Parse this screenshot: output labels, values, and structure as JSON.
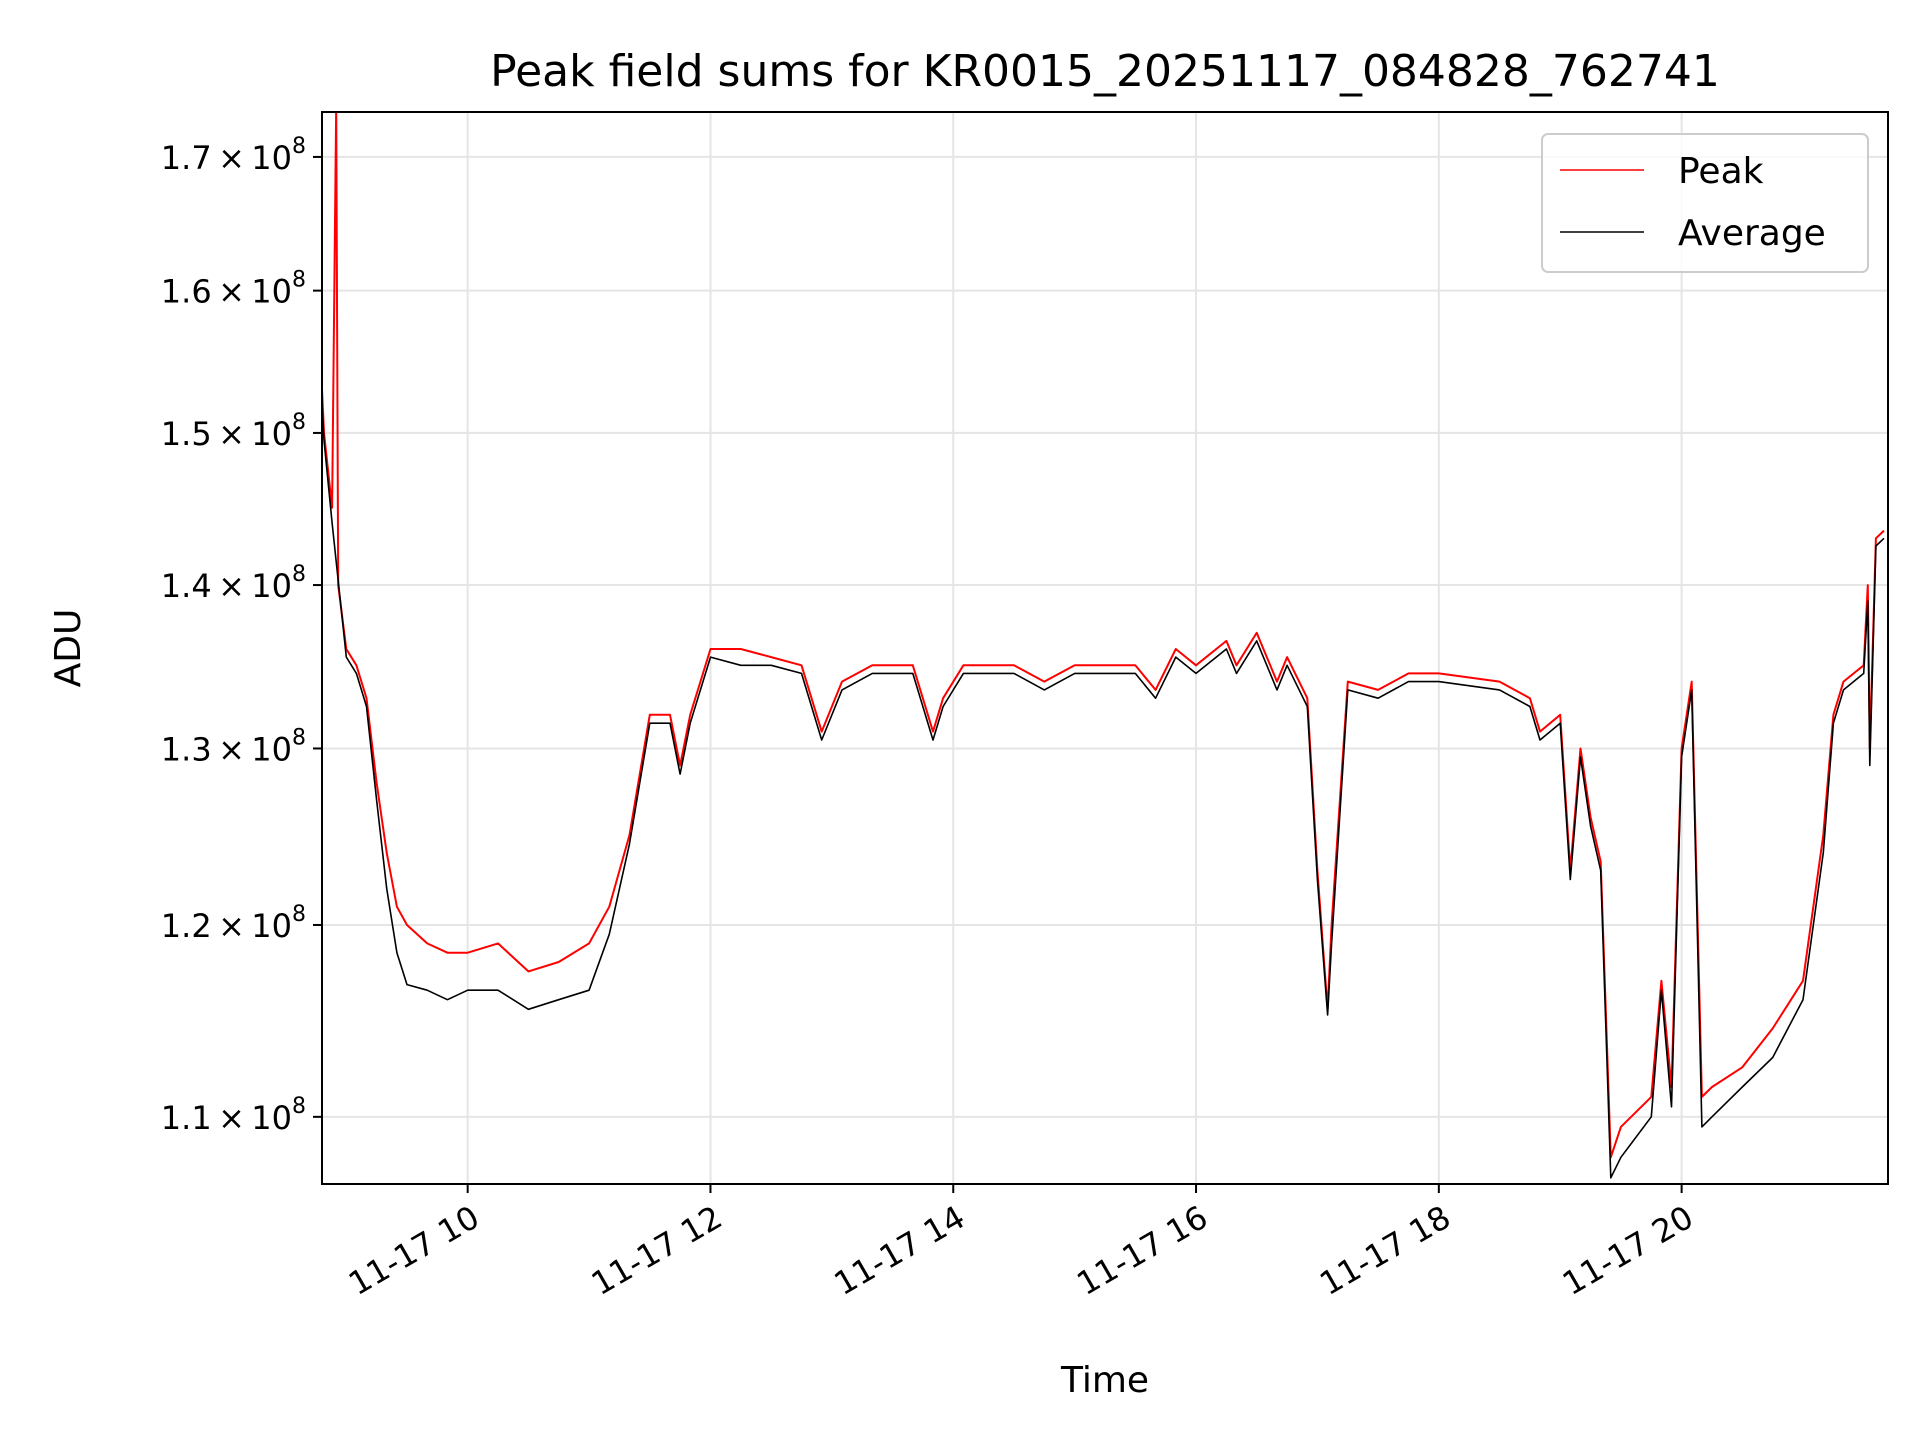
{
  "chart_data": {
    "type": "line",
    "title": "Peak field sums for KR0015_20251117_084828_762741",
    "xlabel": "Time",
    "ylabel": "ADU",
    "yscale": "log",
    "grid": true,
    "legend_position": "top-right",
    "xlim": [
      "2025-11-17 08:48",
      "2025-11-17 21:42"
    ],
    "ylim": [
      106700000,
      173500000
    ],
    "x_ticks": [
      {
        "x": "2025-11-17 10:00",
        "label": "11-17 10"
      },
      {
        "x": "2025-11-17 12:00",
        "label": "11-17 12"
      },
      {
        "x": "2025-11-17 14:00",
        "label": "11-17 14"
      },
      {
        "x": "2025-11-17 16:00",
        "label": "11-17 16"
      },
      {
        "x": "2025-11-17 18:00",
        "label": "11-17 18"
      },
      {
        "x": "2025-11-17 20:00",
        "label": "11-17 20"
      }
    ],
    "y_ticks": [
      {
        "y": 110000000,
        "mantissa": "1.1",
        "base": "10",
        "exponent": "8"
      },
      {
        "y": 120000000,
        "mantissa": "1.2",
        "base": "10",
        "exponent": "8"
      },
      {
        "y": 130000000,
        "mantissa": "1.3",
        "base": "10",
        "exponent": "8"
      },
      {
        "y": 140000000,
        "mantissa": "1.4",
        "base": "10",
        "exponent": "8"
      },
      {
        "y": 150000000,
        "mantissa": "1.5",
        "base": "10",
        "exponent": "8"
      },
      {
        "y": 160000000,
        "mantissa": "1.6",
        "base": "10",
        "exponent": "8"
      },
      {
        "y": 170000000,
        "mantissa": "1.7",
        "base": "10",
        "exponent": "8"
      }
    ],
    "series": [
      {
        "name": "Peak",
        "color": "#ff0000",
        "x": [
          "2025-11-17 08:48",
          "2025-11-17 08:49",
          "2025-11-17 08:53",
          "2025-11-17 08:55",
          "2025-11-17 08:56",
          "2025-11-17 09:00",
          "2025-11-17 09:05",
          "2025-11-17 09:10",
          "2025-11-17 09:15",
          "2025-11-17 09:20",
          "2025-11-17 09:25",
          "2025-11-17 09:30",
          "2025-11-17 09:40",
          "2025-11-17 09:50",
          "2025-11-17 10:00",
          "2025-11-17 10:15",
          "2025-11-17 10:30",
          "2025-11-17 10:45",
          "2025-11-17 11:00",
          "2025-11-17 11:10",
          "2025-11-17 11:20",
          "2025-11-17 11:30",
          "2025-11-17 11:40",
          "2025-11-17 11:45",
          "2025-11-17 11:50",
          "2025-11-17 12:00",
          "2025-11-17 12:15",
          "2025-11-17 12:30",
          "2025-11-17 12:45",
          "2025-11-17 12:55",
          "2025-11-17 13:05",
          "2025-11-17 13:20",
          "2025-11-17 13:40",
          "2025-11-17 13:50",
          "2025-11-17 13:55",
          "2025-11-17 14:05",
          "2025-11-17 14:30",
          "2025-11-17 14:45",
          "2025-11-17 15:00",
          "2025-11-17 15:30",
          "2025-11-17 15:40",
          "2025-11-17 15:50",
          "2025-11-17 16:00",
          "2025-11-17 16:15",
          "2025-11-17 16:20",
          "2025-11-17 16:30",
          "2025-11-17 16:40",
          "2025-11-17 16:45",
          "2025-11-17 16:55",
          "2025-11-17 17:00",
          "2025-11-17 17:05",
          "2025-11-17 17:07",
          "2025-11-17 17:15",
          "2025-11-17 17:30",
          "2025-11-17 17:45",
          "2025-11-17 18:00",
          "2025-11-17 18:30",
          "2025-11-17 18:45",
          "2025-11-17 18:50",
          "2025-11-17 19:00",
          "2025-11-17 19:05",
          "2025-11-17 19:10",
          "2025-11-17 19:15",
          "2025-11-17 19:20",
          "2025-11-17 19:25",
          "2025-11-17 19:30",
          "2025-11-17 19:45",
          "2025-11-17 19:50",
          "2025-11-17 19:55",
          "2025-11-17 20:00",
          "2025-11-17 20:05",
          "2025-11-17 20:10",
          "2025-11-17 20:15",
          "2025-11-17 20:30",
          "2025-11-17 20:45",
          "2025-11-17 21:00",
          "2025-11-17 21:10",
          "2025-11-17 21:15",
          "2025-11-17 21:20",
          "2025-11-17 21:30",
          "2025-11-17 21:32",
          "2025-11-17 21:33",
          "2025-11-17 21:36",
          "2025-11-17 21:40"
        ],
        "y": [
          153000000,
          150000000,
          145000000,
          174000000,
          140000000,
          136000000,
          135000000,
          133000000,
          128000000,
          124000000,
          121000000,
          120000000,
          119000000,
          118500000,
          118500000,
          119000000,
          117500000,
          118000000,
          119000000,
          121000000,
          125000000,
          132000000,
          132000000,
          129000000,
          132000000,
          136000000,
          136000000,
          135500000,
          135000000,
          131000000,
          134000000,
          135000000,
          135000000,
          131000000,
          133000000,
          135000000,
          135000000,
          134000000,
          135000000,
          135000000,
          133500000,
          136000000,
          135000000,
          136500000,
          135000000,
          137000000,
          134000000,
          135500000,
          133000000,
          123000000,
          115500000,
          120000000,
          134000000,
          133500000,
          134500000,
          134500000,
          134000000,
          133000000,
          131000000,
          132000000,
          123000000,
          130000000,
          126000000,
          123500000,
          108000000,
          109500000,
          111000000,
          117000000,
          111500000,
          130000000,
          134000000,
          111000000,
          111500000,
          112500000,
          114500000,
          117000000,
          125000000,
          132000000,
          134000000,
          135000000,
          140000000,
          130000000,
          143000000,
          143500000
        ]
      },
      {
        "name": "Average",
        "color": "#000000",
        "x": [
          "2025-11-17 08:48",
          "2025-11-17 08:49",
          "2025-11-17 08:53",
          "2025-11-17 09:00",
          "2025-11-17 09:05",
          "2025-11-17 09:10",
          "2025-11-17 09:15",
          "2025-11-17 09:20",
          "2025-11-17 09:25",
          "2025-11-17 09:30",
          "2025-11-17 09:40",
          "2025-11-17 09:50",
          "2025-11-17 10:00",
          "2025-11-17 10:15",
          "2025-11-17 10:30",
          "2025-11-17 10:45",
          "2025-11-17 11:00",
          "2025-11-17 11:10",
          "2025-11-17 11:20",
          "2025-11-17 11:30",
          "2025-11-17 11:40",
          "2025-11-17 11:45",
          "2025-11-17 11:50",
          "2025-11-17 12:00",
          "2025-11-17 12:15",
          "2025-11-17 12:30",
          "2025-11-17 12:45",
          "2025-11-17 12:55",
          "2025-11-17 13:05",
          "2025-11-17 13:20",
          "2025-11-17 13:40",
          "2025-11-17 13:50",
          "2025-11-17 13:55",
          "2025-11-17 14:05",
          "2025-11-17 14:30",
          "2025-11-17 14:45",
          "2025-11-17 15:00",
          "2025-11-17 15:30",
          "2025-11-17 15:40",
          "2025-11-17 15:50",
          "2025-11-17 16:00",
          "2025-11-17 16:15",
          "2025-11-17 16:20",
          "2025-11-17 16:30",
          "2025-11-17 16:40",
          "2025-11-17 16:45",
          "2025-11-17 16:55",
          "2025-11-17 17:00",
          "2025-11-17 17:05",
          "2025-11-17 17:07",
          "2025-11-17 17:15",
          "2025-11-17 17:30",
          "2025-11-17 17:45",
          "2025-11-17 18:00",
          "2025-11-17 18:30",
          "2025-11-17 18:45",
          "2025-11-17 18:50",
          "2025-11-17 19:00",
          "2025-11-17 19:05",
          "2025-11-17 19:10",
          "2025-11-17 19:15",
          "2025-11-17 19:20",
          "2025-11-17 19:25",
          "2025-11-17 19:30",
          "2025-11-17 19:45",
          "2025-11-17 19:50",
          "2025-11-17 19:55",
          "2025-11-17 20:00",
          "2025-11-17 20:05",
          "2025-11-17 20:10",
          "2025-11-17 20:15",
          "2025-11-17 20:30",
          "2025-11-17 20:45",
          "2025-11-17 21:00",
          "2025-11-17 21:10",
          "2025-11-17 21:15",
          "2025-11-17 21:20",
          "2025-11-17 21:30",
          "2025-11-17 21:32",
          "2025-11-17 21:33",
          "2025-11-17 21:36",
          "2025-11-17 21:40"
        ],
        "y": [
          152000000,
          149500000,
          144000000,
          135500000,
          134500000,
          132500000,
          127000000,
          122000000,
          118500000,
          116800000,
          116500000,
          116000000,
          116500000,
          116500000,
          115500000,
          116000000,
          116500000,
          119500000,
          124500000,
          131500000,
          131500000,
          128500000,
          131500000,
          135500000,
          135000000,
          135000000,
          134500000,
          130500000,
          133500000,
          134500000,
          134500000,
          130500000,
          132500000,
          134500000,
          134500000,
          133500000,
          134500000,
          134500000,
          133000000,
          135500000,
          134500000,
          136000000,
          134500000,
          136500000,
          133500000,
          135000000,
          132500000,
          122500000,
          115200000,
          119000000,
          133500000,
          133000000,
          134000000,
          134000000,
          133500000,
          132500000,
          130500000,
          131500000,
          122500000,
          129500000,
          125500000,
          123000000,
          107000000,
          108000000,
          110000000,
          116500000,
          110500000,
          129500000,
          133500000,
          109500000,
          110000000,
          111500000,
          113000000,
          116000000,
          124000000,
          131500000,
          133500000,
          134500000,
          139000000,
          129000000,
          142500000,
          143000000
        ]
      }
    ]
  }
}
